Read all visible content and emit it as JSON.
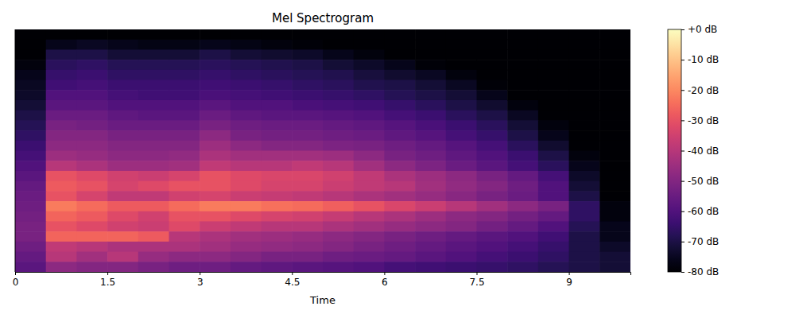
{
  "chart_data": {
    "type": "heatmap",
    "title": "Mel Spectrogram",
    "x_label": "Time",
    "xlim": [
      0,
      10
    ],
    "xticks": [
      0,
      1.5,
      3,
      4.5,
      6,
      7.5,
      9
    ],
    "tick_labels": "x",
    "cells": [
      [
        -80,
        -80,
        -80,
        -80,
        -80,
        -80,
        -80,
        -80,
        -80,
        -80,
        -80,
        -80,
        -80,
        -80,
        -80,
        -80,
        -80,
        -80,
        -80,
        -80
      ],
      [
        -80,
        -76,
        -75,
        -76,
        -77,
        -77,
        -76,
        -77,
        -78,
        -79,
        -80,
        -80,
        -80,
        -80,
        -80,
        -80,
        -80,
        -80,
        -80,
        -80
      ],
      [
        -80,
        -70,
        -70,
        -72,
        -72,
        -72,
        -70,
        -72,
        -73,
        -74,
        -76,
        -78,
        -80,
        -80,
        -80,
        -80,
        -80,
        -80,
        -80,
        -80
      ],
      [
        -78,
        -67,
        -66,
        -68,
        -68,
        -68,
        -67,
        -68,
        -69,
        -70,
        -72,
        -74,
        -76,
        -79,
        -80,
        -80,
        -80,
        -80,
        -80,
        -80
      ],
      [
        -76,
        -65,
        -64,
        -66,
        -66,
        -66,
        -65,
        -66,
        -67,
        -68,
        -69,
        -71,
        -73,
        -75,
        -78,
        -80,
        -80,
        -80,
        -80,
        -80
      ],
      [
        -75,
        -63,
        -62,
        -64,
        -64,
        -64,
        -63,
        -64,
        -65,
        -66,
        -67,
        -69,
        -70,
        -72,
        -75,
        -79,
        -80,
        -80,
        -80,
        -80
      ],
      [
        -74,
        -60,
        -60,
        -62,
        -63,
        -63,
        -61,
        -62,
        -63,
        -64,
        -65,
        -66,
        -68,
        -70,
        -72,
        -76,
        -80,
        -80,
        -80,
        -80
      ],
      [
        -72,
        -58,
        -58,
        -60,
        -60,
        -60,
        -58,
        -60,
        -60,
        -61,
        -62,
        -63,
        -65,
        -67,
        -70,
        -73,
        -78,
        -80,
        -80,
        -80
      ],
      [
        -70,
        -55,
        -55,
        -57,
        -58,
        -58,
        -55,
        -57,
        -58,
        -58,
        -59,
        -60,
        -62,
        -64,
        -67,
        -70,
        -75,
        -80,
        -80,
        -80
      ],
      [
        -68,
        -52,
        -53,
        -55,
        -55,
        -55,
        -52,
        -54,
        -55,
        -55,
        -56,
        -57,
        -59,
        -61,
        -64,
        -67,
        -72,
        -78,
        -80,
        -80
      ],
      [
        -66,
        -50,
        -50,
        -52,
        -52,
        -52,
        -48,
        -52,
        -53,
        -53,
        -54,
        -55,
        -57,
        -59,
        -62,
        -65,
        -70,
        -76,
        -80,
        -80
      ],
      [
        -64,
        -48,
        -48,
        -50,
        -50,
        -50,
        -45,
        -48,
        -50,
        -50,
        -51,
        -52,
        -54,
        -56,
        -59,
        -62,
        -67,
        -73,
        -80,
        -80
      ],
      [
        -62,
        -45,
        -46,
        -48,
        -48,
        -47,
        -42,
        -44,
        -44,
        -44,
        -45,
        -48,
        -52,
        -54,
        -57,
        -60,
        -64,
        -70,
        -78,
        -80
      ],
      [
        -60,
        -40,
        -42,
        -45,
        -45,
        -44,
        -38,
        -40,
        -40,
        -38,
        -40,
        -44,
        -48,
        -51,
        -55,
        -58,
        -62,
        -67,
        -76,
        -80
      ],
      [
        -58,
        -30,
        -32,
        -35,
        -36,
        -34,
        -30,
        -32,
        -33,
        -33,
        -35,
        -38,
        -42,
        -45,
        -48,
        -52,
        -56,
        -62,
        -74,
        -80
      ],
      [
        -56,
        -28,
        -30,
        -34,
        -32,
        -30,
        -30,
        -32,
        -34,
        -34,
        -36,
        -38,
        -40,
        -44,
        -47,
        -50,
        -54,
        -60,
        -72,
        -80
      ],
      [
        -55,
        -30,
        -34,
        -38,
        -38,
        -35,
        -34,
        -36,
        -37,
        -38,
        -40,
        -42,
        -44,
        -46,
        -49,
        -52,
        -55,
        -60,
        -70,
        -80
      ],
      [
        -54,
        -22,
        -25,
        -28,
        -28,
        -25,
        -22,
        -22,
        -24,
        -25,
        -27,
        -30,
        -33,
        -36,
        -40,
        -44,
        -48,
        -52,
        -66,
        -78
      ],
      [
        -53,
        -26,
        -28,
        -32,
        -35,
        -30,
        -30,
        -32,
        -34,
        -35,
        -37,
        -40,
        -42,
        -45,
        -48,
        -50,
        -53,
        -56,
        -66,
        -78
      ],
      [
        -52,
        -30,
        -32,
        -35,
        -36,
        -32,
        -36,
        -38,
        -40,
        -40,
        -42,
        -44,
        -46,
        -48,
        -50,
        -53,
        -56,
        -60,
        -68,
        -76
      ],
      [
        -52,
        -26,
        -26,
        -26,
        -28,
        -40,
        -42,
        -44,
        -45,
        -46,
        -48,
        -50,
        -52,
        -54,
        -56,
        -58,
        -60,
        -63,
        -70,
        -76
      ],
      [
        -54,
        -38,
        -40,
        -42,
        -42,
        -42,
        -44,
        -46,
        -47,
        -48,
        -50,
        -52,
        -54,
        -56,
        -58,
        -60,
        -62,
        -65,
        -70,
        -74
      ],
      [
        -56,
        -40,
        -44,
        -40,
        -46,
        -48,
        -48,
        -50,
        -52,
        -52,
        -54,
        -55,
        -56,
        -58,
        -60,
        -62,
        -64,
        -66,
        -70,
        -72
      ],
      [
        -58,
        -48,
        -50,
        -50,
        -52,
        -54,
        -54,
        -56,
        -57,
        -58,
        -59,
        -60,
        -62,
        -63,
        -64,
        -65,
        -66,
        -68,
        -70,
        -72
      ]
    ],
    "colorbar": {
      "range": [
        -80,
        0
      ],
      "ticks": [
        {
          "value": 0,
          "label": "+0 dB"
        },
        {
          "value": -10,
          "label": "-10 dB"
        },
        {
          "value": -20,
          "label": "-20 dB"
        },
        {
          "value": -30,
          "label": "-30 dB"
        },
        {
          "value": -40,
          "label": "-40 dB"
        },
        {
          "value": -50,
          "label": "-50 dB"
        },
        {
          "value": -60,
          "label": "-60 dB"
        },
        {
          "value": -70,
          "label": "-70 dB"
        },
        {
          "value": -80,
          "label": "-80 dB"
        }
      ]
    }
  }
}
